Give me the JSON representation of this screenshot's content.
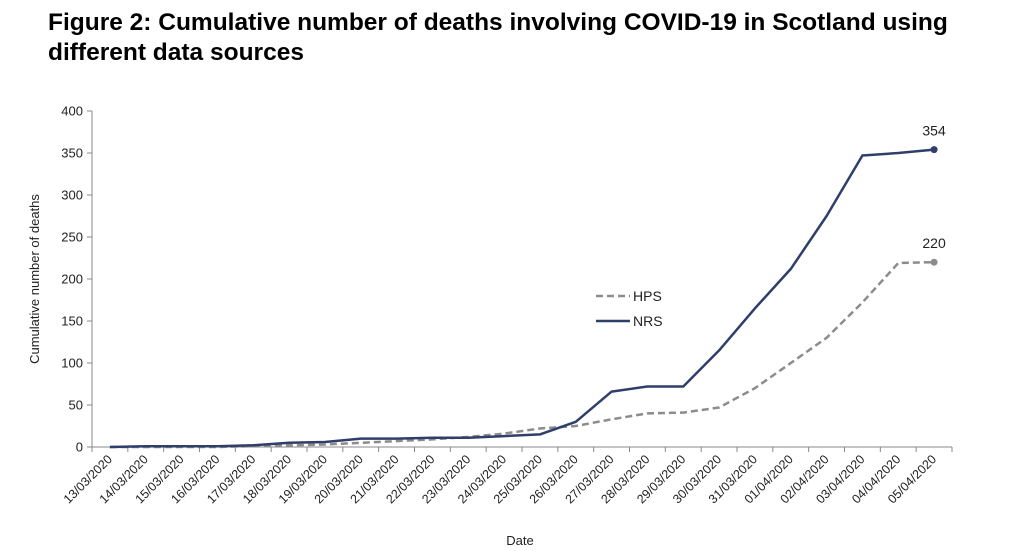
{
  "figure": {
    "title_line1": "Figure 2: Cumulative number of deaths involving COVID-19 in Scotland using",
    "title_line2": "different data sources"
  },
  "chart_data": {
    "type": "line",
    "xlabel": "Date",
    "ylabel": "Cumulative number of deaths",
    "ylim": [
      0,
      400
    ],
    "yticks": [
      0,
      50,
      100,
      150,
      200,
      250,
      300,
      350,
      400
    ],
    "grid": false,
    "legend_position": "center",
    "categories": [
      "13/03/2020",
      "14/03/2020",
      "15/03/2020",
      "16/03/2020",
      "17/03/2020",
      "18/03/2020",
      "19/03/2020",
      "20/03/2020",
      "21/03/2020",
      "22/03/2020",
      "23/03/2020",
      "24/03/2020",
      "25/03/2020",
      "26/03/2020",
      "27/03/2020",
      "28/03/2020",
      "29/03/2020",
      "30/03/2020",
      "31/03/2020",
      "01/04/2020",
      "02/04/2020",
      "03/04/2020",
      "04/04/2020",
      "05/04/2020"
    ],
    "series": [
      {
        "name": "HPS",
        "style": "dashed",
        "color": "#8c8c8c",
        "values": [
          0,
          0,
          0,
          0,
          1,
          2,
          3,
          5,
          7,
          9,
          12,
          16,
          22,
          25,
          33,
          40,
          41,
          47,
          70,
          100,
          130,
          172,
          219,
          220
        ],
        "end_label": "220"
      },
      {
        "name": "NRS",
        "style": "solid",
        "color": "#2f3f6b",
        "values": [
          0,
          1,
          1,
          1,
          2,
          5,
          6,
          10,
          10,
          11,
          11,
          13,
          15,
          30,
          66,
          72,
          72,
          115,
          165,
          212,
          275,
          347,
          350,
          354
        ],
        "end_label": "354"
      }
    ]
  }
}
